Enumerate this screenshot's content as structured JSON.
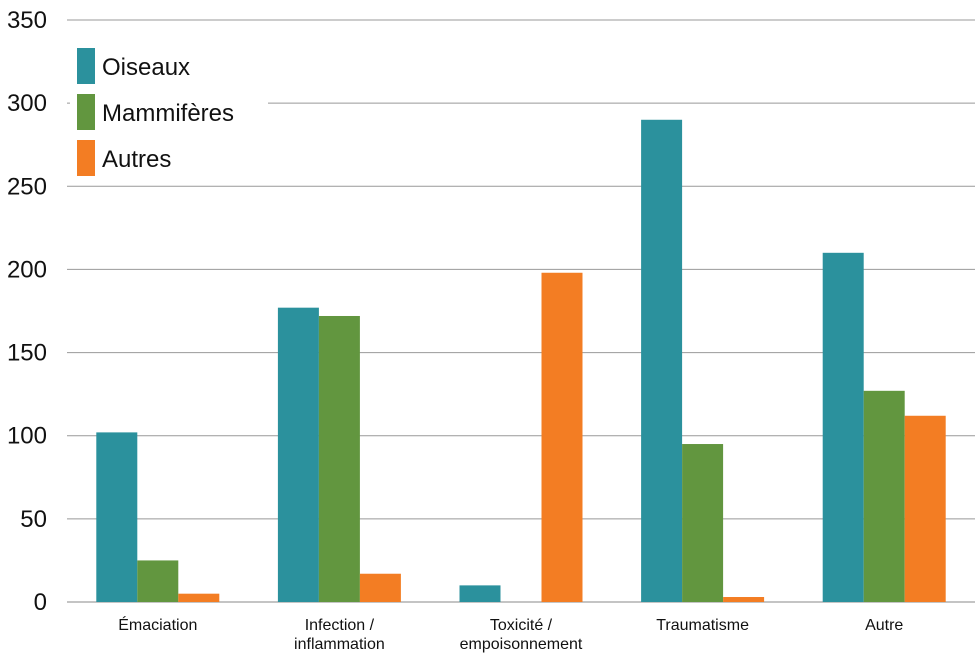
{
  "chart_data": {
    "type": "bar",
    "title": "",
    "xlabel": "",
    "ylabel": "",
    "ylim": [
      0,
      350
    ],
    "yticks": [
      0,
      50,
      100,
      150,
      200,
      250,
      300,
      350
    ],
    "grid": true,
    "legend_position": "top-left",
    "categories": [
      [
        "Émaciation"
      ],
      [
        "Infection /",
        "inflammation"
      ],
      [
        "Toxicité /",
        "empoisonnement"
      ],
      [
        "Traumatisme"
      ],
      [
        "Autre"
      ]
    ],
    "series": [
      {
        "name": "Oiseaux",
        "color": "#2b919d",
        "values": [
          102,
          177,
          10,
          290,
          210
        ]
      },
      {
        "name": "Mammifères",
        "color": "#62963f",
        "values": [
          25,
          172,
          0,
          95,
          127
        ]
      },
      {
        "name": "Autres",
        "color": "#f37d23",
        "values": [
          5,
          17,
          198,
          3,
          112
        ]
      }
    ]
  }
}
